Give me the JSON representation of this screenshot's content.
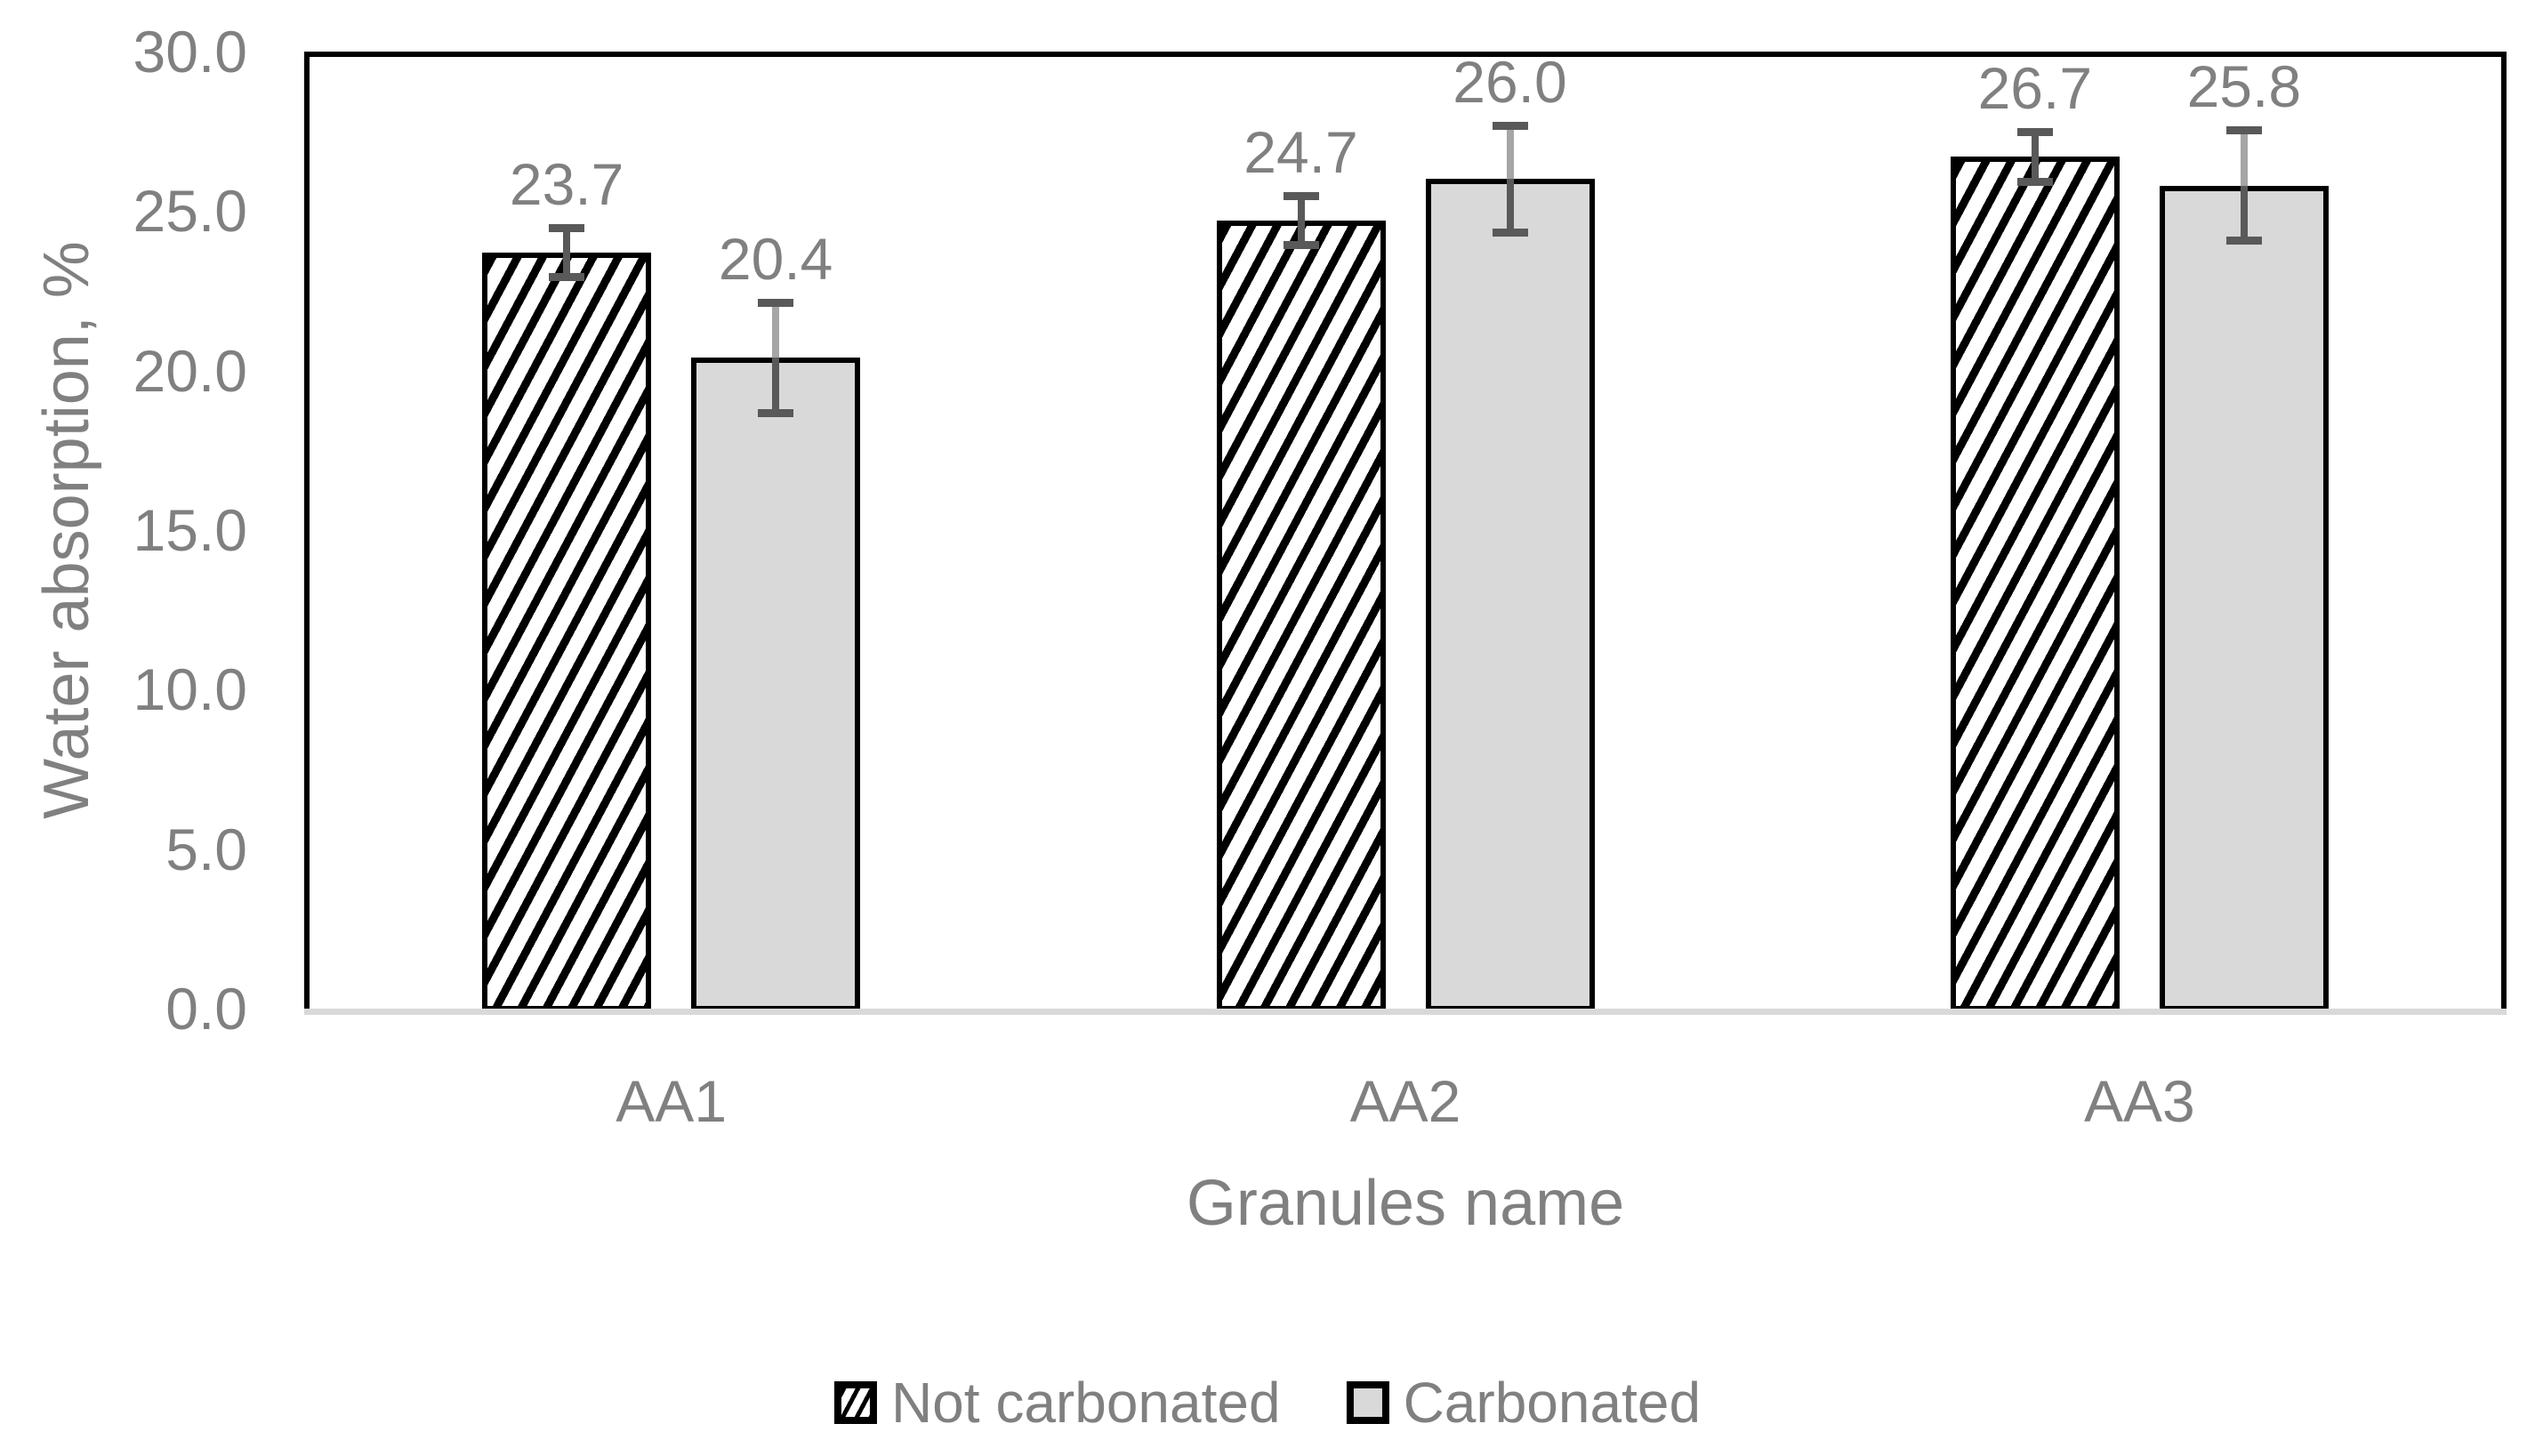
{
  "chart_data": {
    "type": "bar",
    "title": "",
    "xlabel": "Granules name",
    "ylabel": "Water absorption, %",
    "categories": [
      "AA1",
      "AA2",
      "AA3"
    ],
    "series": [
      {
        "name": "Not carbonated",
        "values": [
          23.7,
          24.7,
          26.7
        ],
        "labels": [
          "23.7",
          "24.7",
          "26.7"
        ],
        "errors": [
          0.9,
          0.9,
          0.9
        ],
        "fill_style": "diagonal-hatch"
      },
      {
        "name": "Carbonated",
        "values": [
          20.4,
          26.0,
          25.8
        ],
        "labels": [
          "20.4",
          "26.0",
          "25.8"
        ],
        "errors": [
          1.85,
          1.8,
          1.85
        ],
        "fill_style": "solid-gray"
      }
    ],
    "ylim": [
      0,
      30
    ],
    "yticks": [
      "0.0",
      "5.0",
      "10.0",
      "15.0",
      "20.0",
      "25.0",
      "30.0"
    ],
    "ytick_values": [
      0,
      5,
      10,
      15,
      20,
      25,
      30
    ],
    "grid": false,
    "legend_position": "bottom"
  },
  "colors": {
    "text_gray": "#808080",
    "bar_gray_fill": "#d9d9d9",
    "bar_border": "#000000",
    "error_bar_dark": "#595959",
    "error_bar_light": "#a6a6a6",
    "axis_baseline": "#d9d9d9",
    "plot_border": "#000000",
    "background": "#ffffff"
  }
}
